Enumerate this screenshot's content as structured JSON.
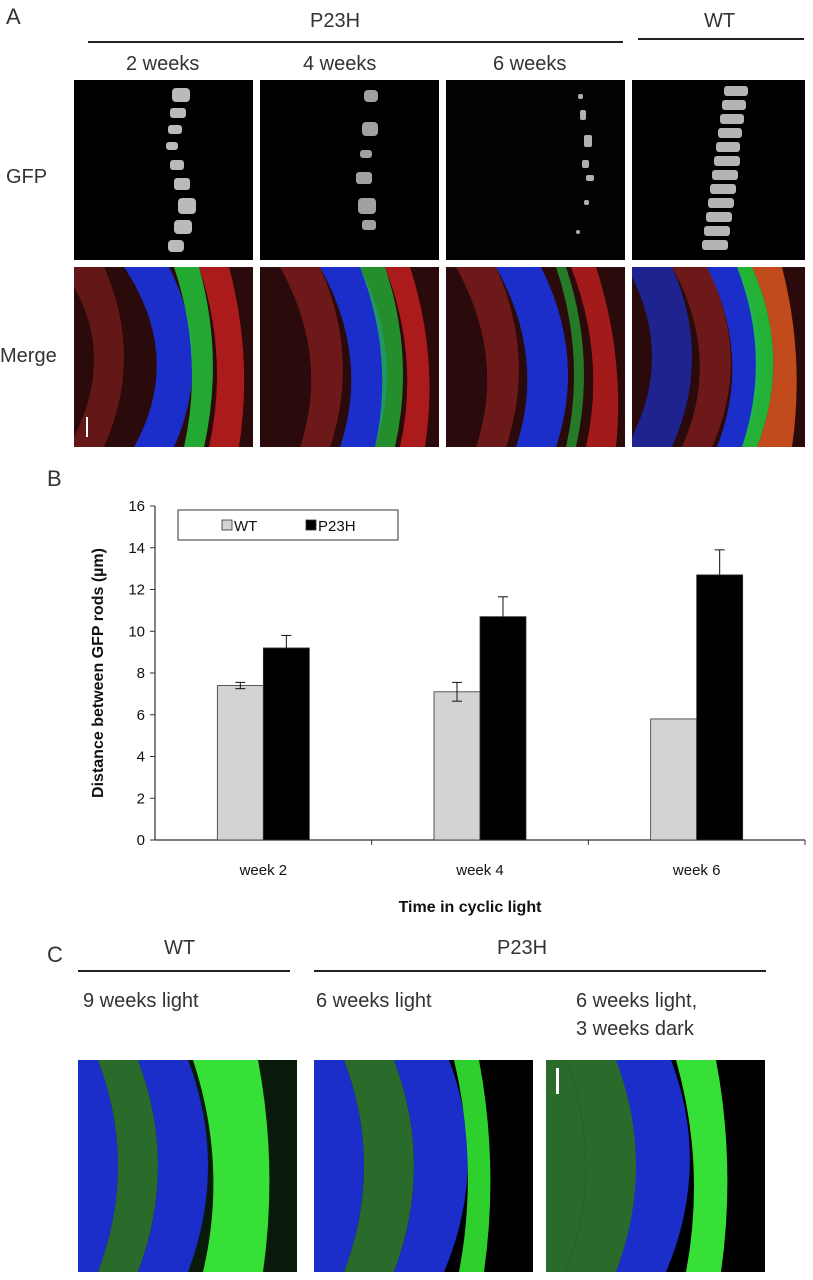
{
  "panel_a": {
    "letter": "A",
    "group_mutant": "P23H",
    "group_wt": "WT",
    "columns": [
      "2 weeks",
      "4 weeks",
      "6 weeks"
    ],
    "rows": [
      "GFP",
      "Merge"
    ]
  },
  "panel_b": {
    "letter": "B",
    "legend": [
      "WT",
      "P23H"
    ],
    "colors": {
      "WT": "#d3d3d3",
      "P23H": "#000000"
    }
  },
  "panel_c": {
    "letter": "C",
    "group_wt": "WT",
    "group_mutant": "P23H",
    "conditions": [
      "9 weeks light",
      "6 weeks light",
      "6 weeks light,",
      "3 weeks dark"
    ]
  },
  "chart_data": {
    "type": "bar",
    "categories": [
      "week 2",
      "week 4",
      "week 6"
    ],
    "series": [
      {
        "name": "WT",
        "values": [
          7.4,
          7.1,
          5.8
        ],
        "errors": [
          0.15,
          0.45,
          0.0
        ]
      },
      {
        "name": "P23H",
        "values": [
          9.2,
          10.7,
          12.7
        ],
        "errors": [
          0.6,
          0.95,
          1.2
        ]
      }
    ],
    "xlabel": "Time in cyclic light",
    "ylabel": "Distance between GFP rods (µm)",
    "ylim": [
      0,
      16
    ],
    "yticks": [
      0,
      2,
      4,
      6,
      8,
      10,
      12,
      14,
      16
    ],
    "legend_position": "top-left"
  }
}
